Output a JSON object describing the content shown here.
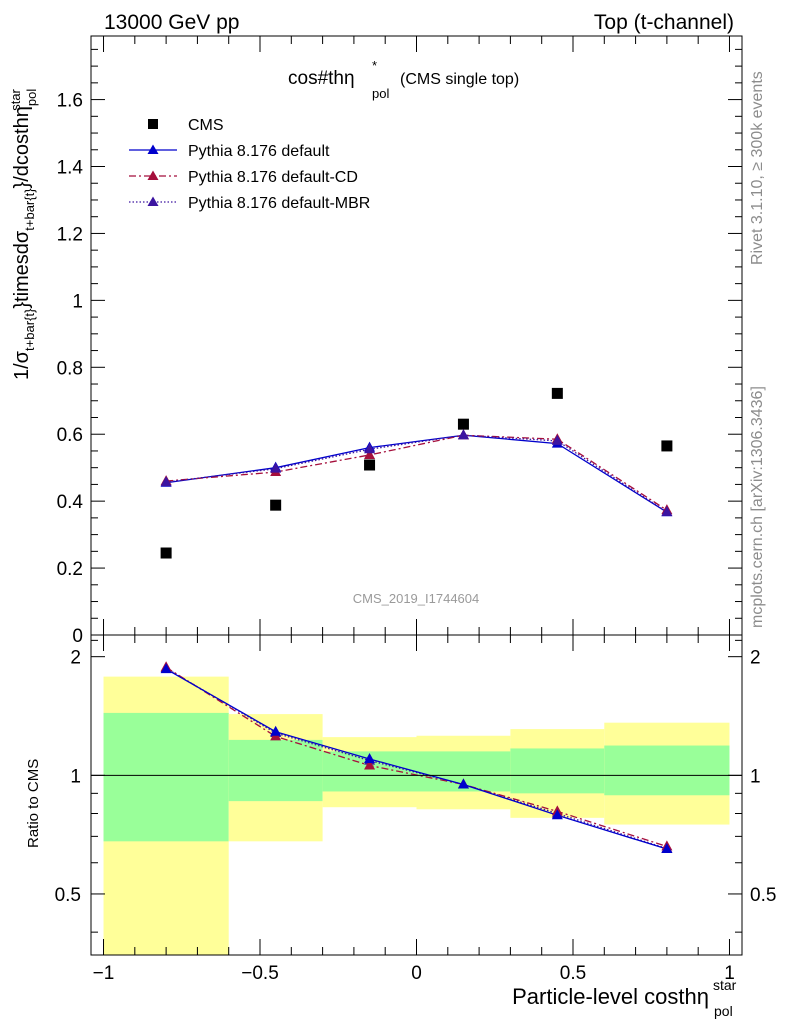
{
  "header": {
    "left_label": "13000 GeV pp",
    "right_label": "Top (t-channel)"
  },
  "side_labels": {
    "rivet": "Rivet 3.1.10, ≥ 300k events",
    "source": "mcplots.cern.ch [arXiv:1306.3436]"
  },
  "colors": {
    "cms": "#000000",
    "default": "#0000cc",
    "cd": "#a50f3c",
    "mbr": "#3c14a0",
    "band_outer": "#ffff99",
    "band_inner": "#99ff99"
  },
  "chart_data": [
    {
      "type": "scatter",
      "title": "cos#thη",
      "title_sup": "*",
      "title_sub": "pol",
      "title_suffix": "(CMS single top)",
      "ylabel": "1/σ",
      "ylabel_parts": {
        "main": "1/σ",
        "sub1": "t+bar{t}",
        "mid": "}timesdσ",
        "sub2": "t+bar{t}",
        "end": "}/dcosthη",
        "sub3": "pol",
        "sup3": "star"
      },
      "xlim": [
        -1.04,
        1.04
      ],
      "ylim": [
        0,
        1.79
      ],
      "yticks": [
        0,
        0.2,
        0.4,
        0.6,
        0.8,
        1,
        1.2,
        1.4,
        1.6
      ],
      "ytick_labels": [
        "0",
        "0.2",
        "0.4",
        "0.6",
        "0.8",
        "1",
        "1.2",
        "1.4",
        "1.6"
      ],
      "watermark": "CMS_2019_I1744604",
      "x": [
        -0.8,
        -0.45,
        -0.15,
        0.15,
        0.45,
        0.8
      ],
      "series": [
        {
          "name": "CMS",
          "marker": "square",
          "values": [
            0.245,
            0.388,
            0.508,
            0.63,
            0.722,
            0.565
          ]
        },
        {
          "name": "Pythia 8.176 default",
          "marker": "triangle",
          "line": "solid",
          "values": [
            0.455,
            0.5,
            0.56,
            0.597,
            0.572,
            0.367
          ]
        },
        {
          "name": "Pythia 8.176 default-CD",
          "marker": "triangle",
          "line": "dashdot",
          "values": [
            0.46,
            0.487,
            0.538,
            0.597,
            0.585,
            0.373
          ]
        },
        {
          "name": "Pythia 8.176 default-MBR",
          "marker": "triangle",
          "line": "dotted",
          "values": [
            0.457,
            0.497,
            0.555,
            0.597,
            0.58,
            0.368
          ]
        }
      ]
    },
    {
      "type": "line",
      "ylabel": "Ratio to CMS",
      "xlabel": "Particle-level costhη",
      "xlabel_sub": "pol",
      "xlabel_sup": "star",
      "xlim": [
        -1.04,
        1.04
      ],
      "ylim": [
        0.35,
        2.27
      ],
      "xticks": [
        -1,
        -0.5,
        0,
        0.5,
        1
      ],
      "xtick_labels": [
        "−1",
        "−0.5",
        "0",
        "0.5",
        "1"
      ],
      "yticks": [
        0.5,
        1,
        2
      ],
      "ytick_labels": [
        "0.5",
        "1",
        "2"
      ],
      "reference": 1,
      "bins": [
        {
          "lo": -1.0,
          "hi": -0.6,
          "outer": [
            0.35,
            1.78
          ],
          "inner": [
            0.68,
            1.44
          ]
        },
        {
          "lo": -0.6,
          "hi": -0.3,
          "outer": [
            0.68,
            1.43
          ],
          "inner": [
            0.86,
            1.23
          ]
        },
        {
          "lo": -0.3,
          "hi": 0.0,
          "outer": [
            0.83,
            1.25
          ],
          "inner": [
            0.91,
            1.15
          ]
        },
        {
          "lo": 0.0,
          "hi": 0.3,
          "outer": [
            0.82,
            1.26
          ],
          "inner": [
            0.91,
            1.15
          ]
        },
        {
          "lo": 0.3,
          "hi": 0.6,
          "outer": [
            0.78,
            1.31
          ],
          "inner": [
            0.9,
            1.17
          ]
        },
        {
          "lo": 0.6,
          "hi": 1.0,
          "outer": [
            0.75,
            1.36
          ],
          "inner": [
            0.89,
            1.19
          ]
        }
      ],
      "x": [
        -0.8,
        -0.45,
        -0.15,
        0.15,
        0.45,
        0.8
      ],
      "series": [
        {
          "name": "Pythia 8.176 default",
          "values": [
            1.86,
            1.29,
            1.1,
            0.948,
            0.792,
            0.65
          ]
        },
        {
          "name": "Pythia 8.176 default-CD",
          "values": [
            1.88,
            1.255,
            1.059,
            0.948,
            0.81,
            0.66
          ]
        },
        {
          "name": "Pythia 8.176 default-MBR",
          "values": [
            1.87,
            1.28,
            1.09,
            0.948,
            0.8,
            0.652
          ]
        }
      ]
    }
  ]
}
